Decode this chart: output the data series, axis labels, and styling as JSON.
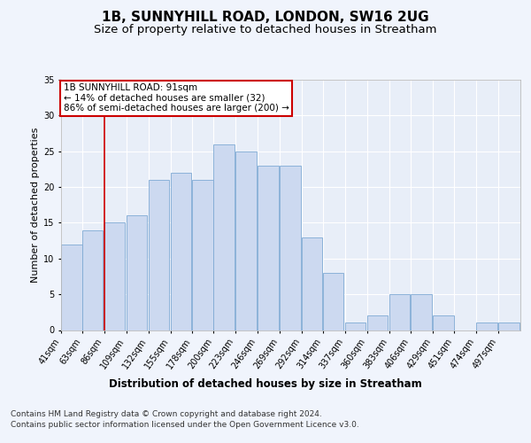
{
  "title": "1B, SUNNYHILL ROAD, LONDON, SW16 2UG",
  "subtitle": "Size of property relative to detached houses in Streatham",
  "xlabel": "Distribution of detached houses by size in Streatham",
  "ylabel": "Number of detached properties",
  "bar_values": [
    12,
    14,
    15,
    16,
    21,
    22,
    21,
    26,
    25,
    23,
    23,
    13,
    8,
    1,
    2,
    5,
    5,
    2,
    0,
    1,
    1
  ],
  "bin_edges": [
    41,
    63,
    86,
    109,
    132,
    155,
    178,
    200,
    223,
    246,
    269,
    292,
    314,
    337,
    360,
    383,
    406,
    429,
    451,
    474,
    497,
    520
  ],
  "x_tick_labels": [
    "41sqm",
    "63sqm",
    "86sqm",
    "109sqm",
    "132sqm",
    "155sqm",
    "178sqm",
    "200sqm",
    "223sqm",
    "246sqm",
    "269sqm",
    "292sqm",
    "314sqm",
    "337sqm",
    "360sqm",
    "383sqm",
    "406sqm",
    "429sqm",
    "451sqm",
    "474sqm",
    "497sqm"
  ],
  "bar_color": "#ccd9f0",
  "bar_edge_color": "#7faad4",
  "background_color": "#e8eef8",
  "grid_color": "#ffffff",
  "red_line_x": 86,
  "annotation_title": "1B SUNNYHILL ROAD: 91sqm",
  "annotation_line2": "← 14% of detached houses are smaller (32)",
  "annotation_line3": "86% of semi-detached houses are larger (200) →",
  "annotation_box_color": "#ffffff",
  "annotation_border_color": "#cc0000",
  "red_line_color": "#cc0000",
  "ylim": [
    0,
    35
  ],
  "yticks": [
    0,
    5,
    10,
    15,
    20,
    25,
    30,
    35
  ],
  "footer_line1": "Contains HM Land Registry data © Crown copyright and database right 2024.",
  "footer_line2": "Contains public sector information licensed under the Open Government Licence v3.0.",
  "title_fontsize": 11,
  "subtitle_fontsize": 9.5,
  "ylabel_fontsize": 8,
  "xlabel_fontsize": 8.5,
  "tick_fontsize": 7,
  "annotation_fontsize": 7.5,
  "footer_fontsize": 6.5
}
